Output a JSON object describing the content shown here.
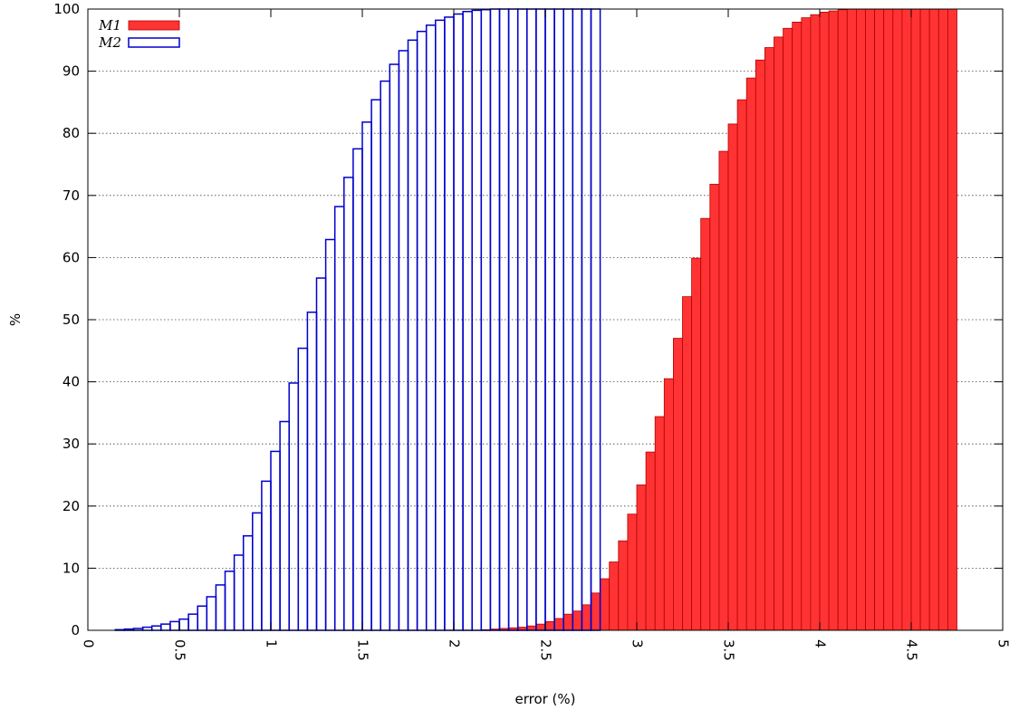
{
  "chart_data": {
    "type": "bar",
    "xlabel": "error (%)",
    "ylabel": "%",
    "xlim": [
      0,
      5
    ],
    "ylim": [
      0,
      100
    ],
    "bin_width": 0.05,
    "x_ticks": [
      "0",
      "0.5",
      "1",
      "1.5",
      "2",
      "2.5",
      "3",
      "3.5",
      "4",
      "4.5",
      "5"
    ],
    "y_ticks": [
      "0",
      "10",
      "20",
      "30",
      "40",
      "50",
      "60",
      "70",
      "80",
      "90",
      "100"
    ],
    "grid": "horizontal dotted",
    "legend_position": "top-left",
    "series": [
      {
        "name": "M1",
        "style": "filled",
        "color": "#ff3333",
        "x": [
          2.15,
          2.2,
          2.25,
          2.3,
          2.35,
          2.4,
          2.45,
          2.5,
          2.55,
          2.6,
          2.65,
          2.7,
          2.75,
          2.8,
          2.85,
          2.9,
          2.95,
          3.0,
          3.05,
          3.1,
          3.15,
          3.2,
          3.25,
          3.3,
          3.35,
          3.4,
          3.45,
          3.5,
          3.55,
          3.6,
          3.65,
          3.7,
          3.75,
          3.8,
          3.85,
          3.9,
          3.95,
          4.0,
          4.05,
          4.1,
          4.15,
          4.2,
          4.25,
          4.3,
          4.35,
          4.4,
          4.45,
          4.5,
          4.55,
          4.6,
          4.65,
          4.7
        ],
        "values": [
          0.1,
          0.2,
          0.3,
          0.4,
          0.5,
          0.7,
          1.0,
          1.4,
          1.9,
          2.6,
          3.1,
          4.1,
          6.0,
          8.3,
          11.0,
          14.4,
          18.7,
          23.4,
          28.7,
          34.4,
          40.5,
          47.0,
          53.7,
          59.9,
          66.3,
          71.8,
          77.1,
          81.5,
          85.4,
          88.9,
          91.8,
          93.8,
          95.5,
          96.9,
          97.9,
          98.6,
          99.1,
          99.5,
          99.7,
          99.9,
          100,
          100,
          100,
          100,
          100,
          100,
          100,
          100,
          100,
          100,
          100,
          100
        ]
      },
      {
        "name": "M2",
        "style": "outline",
        "color": "#0000cc",
        "x": [
          0.15,
          0.2,
          0.25,
          0.3,
          0.35,
          0.4,
          0.45,
          0.5,
          0.55,
          0.6,
          0.65,
          0.7,
          0.75,
          0.8,
          0.85,
          0.9,
          0.95,
          1.0,
          1.05,
          1.1,
          1.15,
          1.2,
          1.25,
          1.3,
          1.35,
          1.4,
          1.45,
          1.5,
          1.55,
          1.6,
          1.65,
          1.7,
          1.75,
          1.8,
          1.85,
          1.9,
          1.95,
          2.0,
          2.05,
          2.1,
          2.15,
          2.2,
          2.25,
          2.3,
          2.35,
          2.4,
          2.45,
          2.5,
          2.55,
          2.6,
          2.65,
          2.7,
          2.75
        ],
        "values": [
          0.1,
          0.2,
          0.3,
          0.5,
          0.7,
          1.0,
          1.4,
          1.8,
          2.6,
          3.9,
          5.4,
          7.3,
          9.5,
          12.1,
          15.2,
          18.9,
          24.0,
          28.8,
          33.6,
          39.8,
          45.4,
          51.2,
          56.7,
          62.9,
          68.2,
          72.9,
          77.5,
          81.8,
          85.4,
          88.4,
          91.1,
          93.3,
          95.0,
          96.4,
          97.4,
          98.2,
          98.7,
          99.2,
          99.6,
          99.8,
          99.9,
          100,
          100,
          100,
          100,
          100,
          100,
          100,
          100,
          100,
          100,
          100,
          100
        ]
      }
    ]
  }
}
